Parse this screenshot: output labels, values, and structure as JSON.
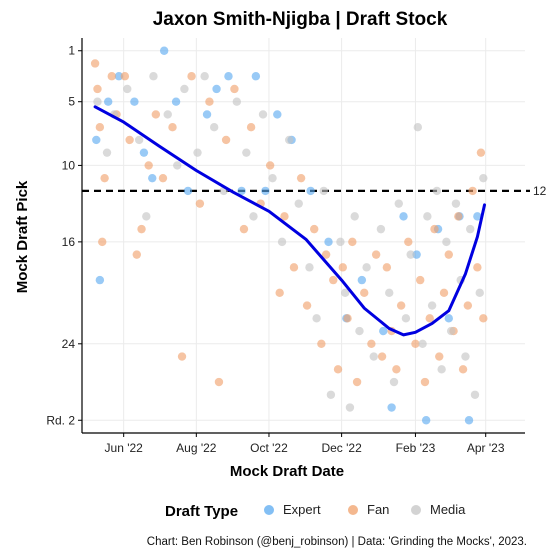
{
  "chart_data": {
    "type": "scatter",
    "title": "Jaxon Smith-Njigba | Draft Stock",
    "xlabel": "Mock Draft Date",
    "ylabel": "Mock Draft Pick",
    "x_range": [
      "2022-04-27",
      "2023-05-04"
    ],
    "y_range": [
      0,
      31
    ],
    "y_reversed": true,
    "x_ticks": [
      {
        "date": "2022-06-01",
        "label": "Jun '22"
      },
      {
        "date": "2022-08-01",
        "label": "Aug '22"
      },
      {
        "date": "2022-10-01",
        "label": "Oct '22"
      },
      {
        "date": "2022-12-01",
        "label": "Dec '22"
      },
      {
        "date": "2023-02-01",
        "label": "Feb '23"
      },
      {
        "date": "2023-04-01",
        "label": "Apr '23"
      }
    ],
    "y_ticks": [
      {
        "value": 1,
        "label": "1"
      },
      {
        "value": 5,
        "label": "5"
      },
      {
        "value": 10,
        "label": "10"
      },
      {
        "value": 16,
        "label": "16"
      },
      {
        "value": 24,
        "label": "24"
      },
      {
        "value": 30,
        "label": "Rd. 2"
      }
    ],
    "grid": true,
    "reference_line": {
      "value": 12,
      "label": "12",
      "style": "dashed"
    },
    "legend": {
      "title": "Draft Type",
      "position": "bottom",
      "entries": [
        {
          "label": "Expert",
          "color": "#5aaaf0"
        },
        {
          "label": "Fan",
          "color": "#f0a06a"
        },
        {
          "label": "Media",
          "color": "#c4c4c4"
        }
      ]
    },
    "series": [
      {
        "name": "Expert",
        "color": "#5aaaf0",
        "points": [
          [
            "2022-05-09",
            8
          ],
          [
            "2022-05-12",
            19
          ],
          [
            "2022-05-19",
            5
          ],
          [
            "2022-05-28",
            3
          ],
          [
            "2022-06-10",
            5
          ],
          [
            "2022-06-18",
            9
          ],
          [
            "2022-06-25",
            11
          ],
          [
            "2022-07-05",
            1
          ],
          [
            "2022-07-15",
            5
          ],
          [
            "2022-07-25",
            12
          ],
          [
            "2022-08-10",
            6
          ],
          [
            "2022-08-18",
            4
          ],
          [
            "2022-08-28",
            3
          ],
          [
            "2022-09-08",
            12
          ],
          [
            "2022-09-20",
            3
          ],
          [
            "2022-09-28",
            12
          ],
          [
            "2022-10-08",
            6
          ],
          [
            "2022-10-20",
            8
          ],
          [
            "2022-11-05",
            12
          ],
          [
            "2022-11-20",
            16
          ],
          [
            "2022-12-05",
            22
          ],
          [
            "2022-12-18",
            19
          ],
          [
            "2023-01-05",
            23
          ],
          [
            "2023-01-12",
            29
          ],
          [
            "2023-01-22",
            14
          ],
          [
            "2023-02-02",
            17
          ],
          [
            "2023-02-10",
            30
          ],
          [
            "2023-02-20",
            15
          ],
          [
            "2023-03-01",
            22
          ],
          [
            "2023-03-10",
            14
          ],
          [
            "2023-03-18",
            30
          ],
          [
            "2023-03-25",
            14
          ]
        ]
      },
      {
        "name": "Fan",
        "color": "#f0a06a",
        "points": [
          [
            "2022-05-08",
            2
          ],
          [
            "2022-05-10",
            4
          ],
          [
            "2022-05-12",
            7
          ],
          [
            "2022-05-14",
            16
          ],
          [
            "2022-05-16",
            11
          ],
          [
            "2022-05-22",
            3
          ],
          [
            "2022-05-26",
            6
          ],
          [
            "2022-06-02",
            3
          ],
          [
            "2022-06-06",
            8
          ],
          [
            "2022-06-12",
            17
          ],
          [
            "2022-06-16",
            15
          ],
          [
            "2022-06-22",
            10
          ],
          [
            "2022-06-28",
            6
          ],
          [
            "2022-07-04",
            11
          ],
          [
            "2022-07-12",
            7
          ],
          [
            "2022-07-20",
            25
          ],
          [
            "2022-07-28",
            3
          ],
          [
            "2022-08-04",
            13
          ],
          [
            "2022-08-12",
            5
          ],
          [
            "2022-08-20",
            27
          ],
          [
            "2022-08-26",
            8
          ],
          [
            "2022-09-02",
            4
          ],
          [
            "2022-09-10",
            15
          ],
          [
            "2022-09-16",
            7
          ],
          [
            "2022-09-24",
            13
          ],
          [
            "2022-10-02",
            10
          ],
          [
            "2022-10-10",
            20
          ],
          [
            "2022-10-14",
            14
          ],
          [
            "2022-10-22",
            18
          ],
          [
            "2022-10-28",
            11
          ],
          [
            "2022-11-02",
            21
          ],
          [
            "2022-11-08",
            15
          ],
          [
            "2022-11-14",
            24
          ],
          [
            "2022-11-18",
            17
          ],
          [
            "2022-11-24",
            19
          ],
          [
            "2022-11-28",
            26
          ],
          [
            "2022-12-02",
            18
          ],
          [
            "2022-12-06",
            22
          ],
          [
            "2022-12-10",
            16
          ],
          [
            "2022-12-14",
            27
          ],
          [
            "2022-12-20",
            20
          ],
          [
            "2022-12-26",
            24
          ],
          [
            "2022-12-30",
            17
          ],
          [
            "2023-01-04",
            25
          ],
          [
            "2023-01-08",
            18
          ],
          [
            "2023-01-12",
            23
          ],
          [
            "2023-01-16",
            26
          ],
          [
            "2023-01-20",
            21
          ],
          [
            "2023-01-26",
            16
          ],
          [
            "2023-02-01",
            24
          ],
          [
            "2023-02-05",
            19
          ],
          [
            "2023-02-09",
            27
          ],
          [
            "2023-02-13",
            22
          ],
          [
            "2023-02-17",
            15
          ],
          [
            "2023-02-21",
            25
          ],
          [
            "2023-02-25",
            20
          ],
          [
            "2023-03-01",
            17
          ],
          [
            "2023-03-05",
            23
          ],
          [
            "2023-03-09",
            14
          ],
          [
            "2023-03-13",
            26
          ],
          [
            "2023-03-17",
            21
          ],
          [
            "2023-03-21",
            12
          ],
          [
            "2023-03-25",
            18
          ],
          [
            "2023-03-28",
            9
          ],
          [
            "2023-03-30",
            22
          ]
        ]
      },
      {
        "name": "Media",
        "color": "#c4c4c4",
        "points": [
          [
            "2022-05-10",
            5
          ],
          [
            "2022-05-18",
            9
          ],
          [
            "2022-05-24",
            6
          ],
          [
            "2022-06-04",
            4
          ],
          [
            "2022-06-14",
            8
          ],
          [
            "2022-06-20",
            14
          ],
          [
            "2022-06-26",
            3
          ],
          [
            "2022-07-08",
            6
          ],
          [
            "2022-07-16",
            10
          ],
          [
            "2022-07-22",
            4
          ],
          [
            "2022-08-02",
            9
          ],
          [
            "2022-08-08",
            3
          ],
          [
            "2022-08-16",
            7
          ],
          [
            "2022-08-24",
            12
          ],
          [
            "2022-09-04",
            5
          ],
          [
            "2022-09-12",
            9
          ],
          [
            "2022-09-18",
            14
          ],
          [
            "2022-09-26",
            6
          ],
          [
            "2022-10-04",
            11
          ],
          [
            "2022-10-12",
            16
          ],
          [
            "2022-10-18",
            8
          ],
          [
            "2022-10-26",
            13
          ],
          [
            "2022-11-04",
            18
          ],
          [
            "2022-11-10",
            22
          ],
          [
            "2022-11-16",
            12
          ],
          [
            "2022-11-22",
            28
          ],
          [
            "2022-11-30",
            16
          ],
          [
            "2022-12-04",
            20
          ],
          [
            "2022-12-08",
            29
          ],
          [
            "2022-12-12",
            14
          ],
          [
            "2022-12-16",
            23
          ],
          [
            "2022-12-22",
            18
          ],
          [
            "2022-12-28",
            25
          ],
          [
            "2023-01-03",
            15
          ],
          [
            "2023-01-10",
            20
          ],
          [
            "2023-01-14",
            27
          ],
          [
            "2023-01-18",
            13
          ],
          [
            "2023-01-24",
            22
          ],
          [
            "2023-01-28",
            17
          ],
          [
            "2023-02-03",
            7
          ],
          [
            "2023-02-07",
            24
          ],
          [
            "2023-02-11",
            14
          ],
          [
            "2023-02-15",
            21
          ],
          [
            "2023-02-19",
            12
          ],
          [
            "2023-02-23",
            26
          ],
          [
            "2023-02-27",
            16
          ],
          [
            "2023-03-03",
            23
          ],
          [
            "2023-03-07",
            13
          ],
          [
            "2023-03-11",
            19
          ],
          [
            "2023-03-15",
            25
          ],
          [
            "2023-03-19",
            15
          ],
          [
            "2023-03-23",
            28
          ],
          [
            "2023-03-27",
            20
          ],
          [
            "2023-03-30",
            11
          ]
        ]
      }
    ],
    "trend_line": {
      "color": "#0000e0",
      "points": [
        [
          "2022-05-08",
          5.4
        ],
        [
          "2022-06-01",
          6.6
        ],
        [
          "2022-07-01",
          8.5
        ],
        [
          "2022-08-01",
          10.4
        ],
        [
          "2022-09-01",
          12.1
        ],
        [
          "2022-10-01",
          13.6
        ],
        [
          "2022-11-01",
          15.8
        ],
        [
          "2022-12-01",
          19.0
        ],
        [
          "2022-12-20",
          21.2
        ],
        [
          "2023-01-10",
          22.8
        ],
        [
          "2023-01-22",
          23.3
        ],
        [
          "2023-02-01",
          23.1
        ],
        [
          "2023-02-15",
          22.4
        ],
        [
          "2023-03-01",
          21.4
        ],
        [
          "2023-03-15",
          18.5
        ],
        [
          "2023-03-25",
          15.6
        ],
        [
          "2023-03-31",
          13.1
        ]
      ]
    }
  },
  "caption": "Chart: Ben Robinson (@benj_robinson) | Data: 'Grinding the Mocks', 2023."
}
